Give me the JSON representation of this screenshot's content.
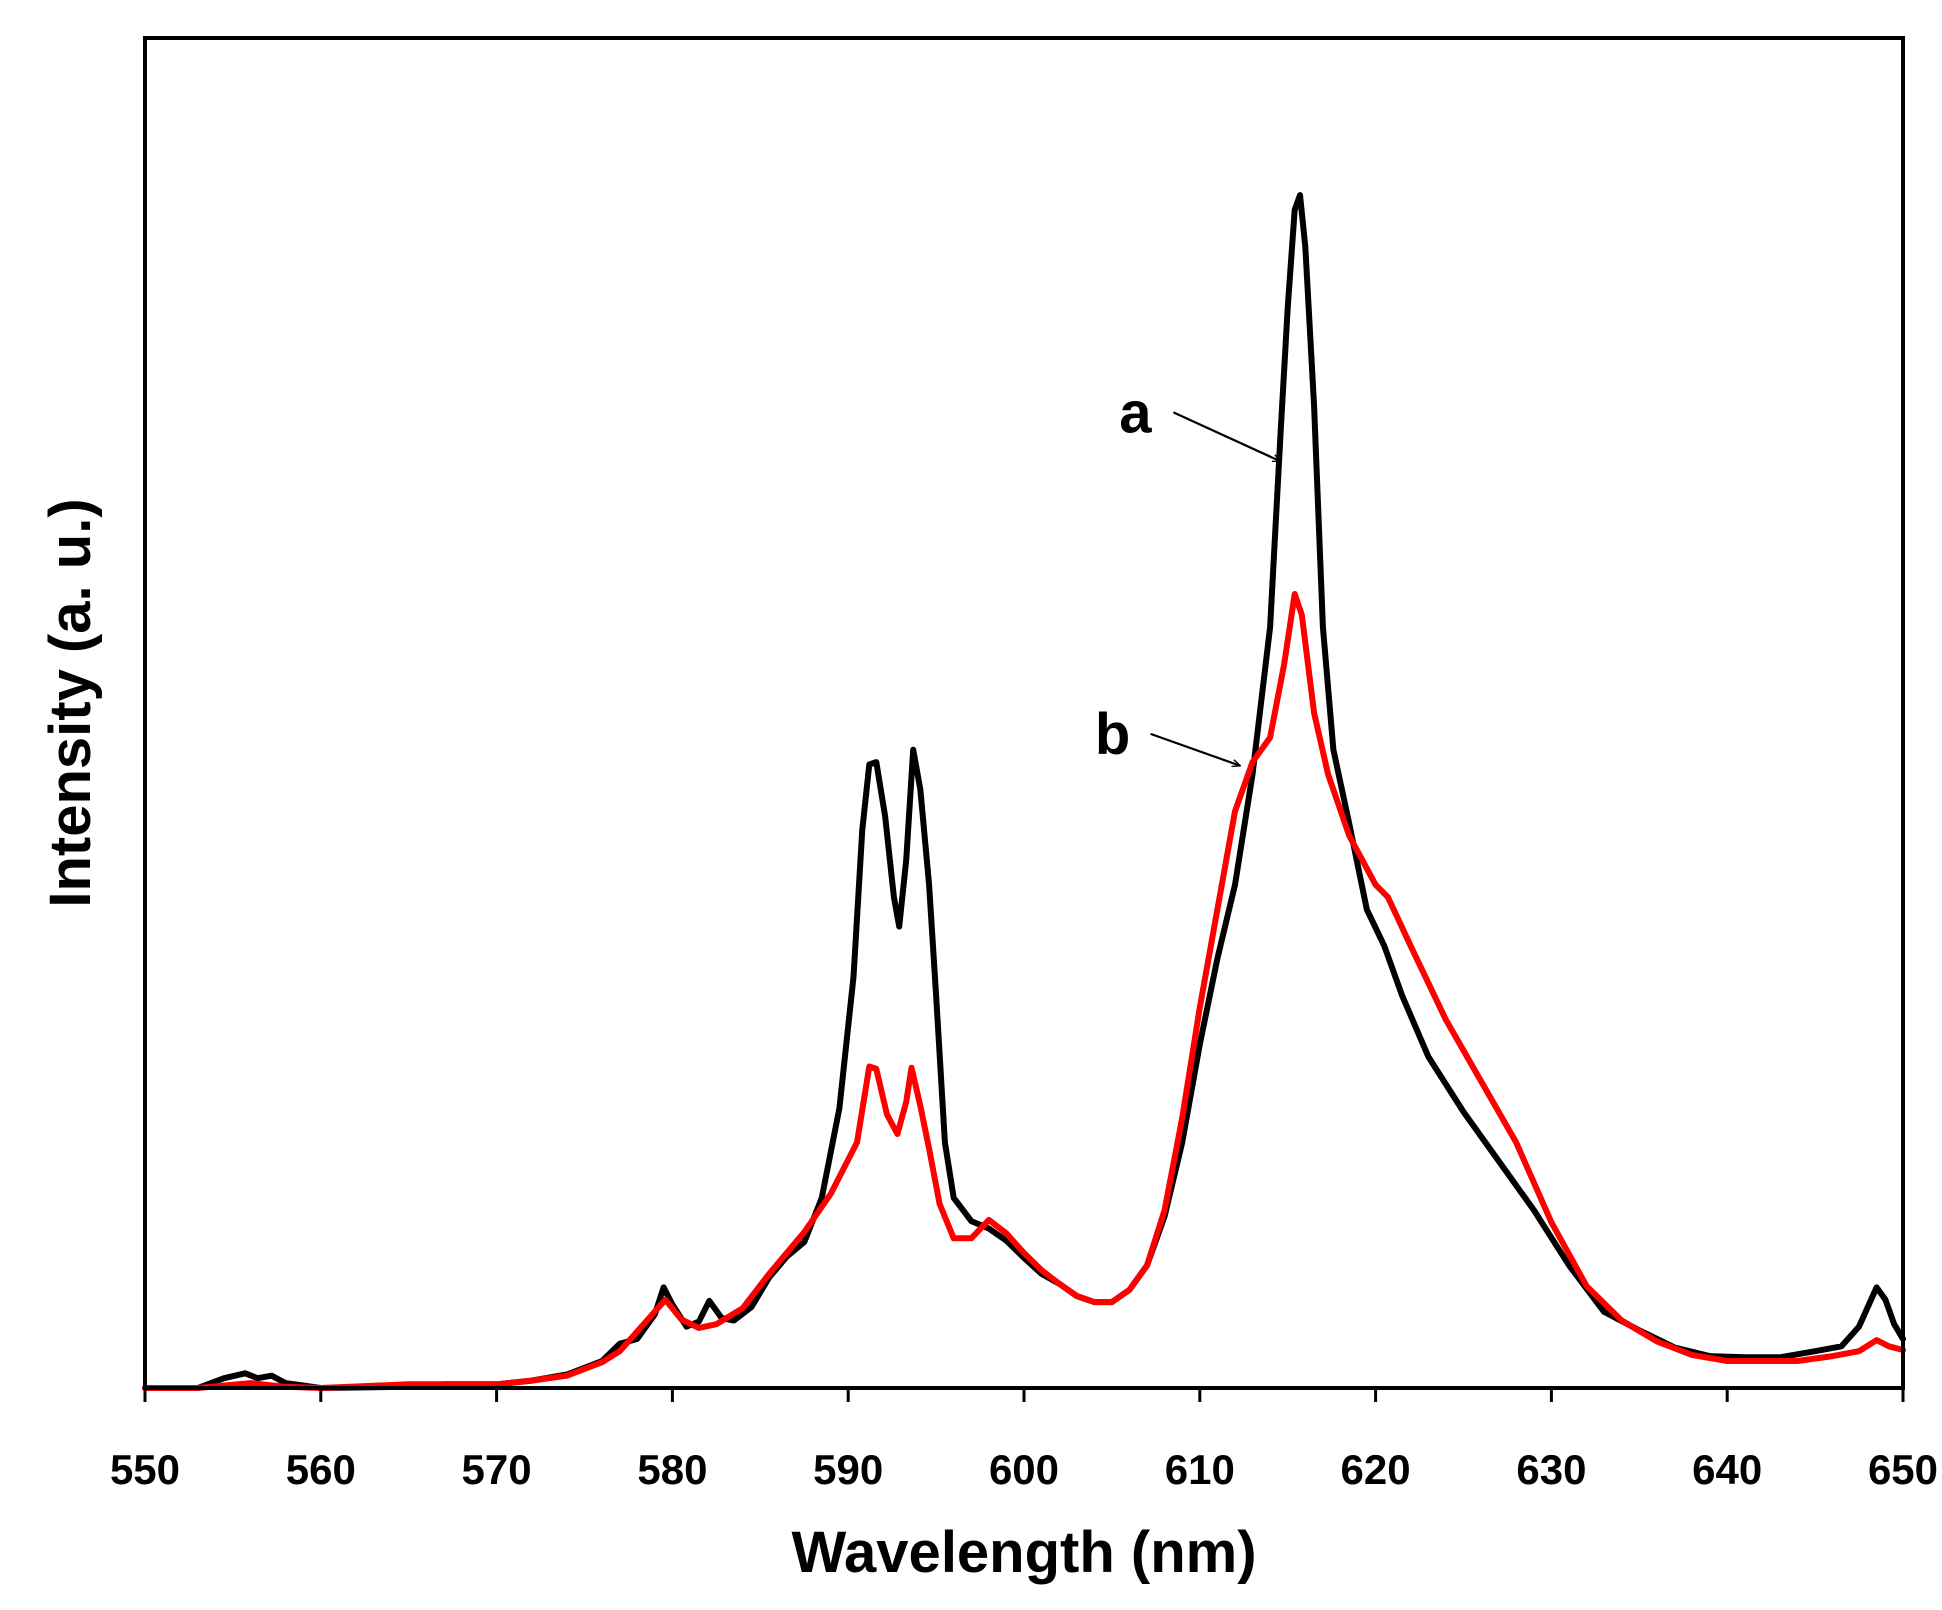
{
  "chart_data": {
    "type": "line",
    "title": "",
    "xlabel": "Wavelength (nm)",
    "ylabel": "Intensity (a. u.)",
    "xlim": [
      550,
      650
    ],
    "ylim": [
      0,
      1.1
    ],
    "xticks": [
      "550",
      "560",
      "570",
      "580",
      "590",
      "600",
      "610",
      "620",
      "630",
      "640",
      "650"
    ],
    "yticks_shown": false,
    "grid": false,
    "legend": "none",
    "series": [
      {
        "key": "a",
        "color": "#000000",
        "points": [
          [
            550,
            0.0
          ],
          [
            553,
            0.0
          ],
          [
            554.5,
            0.008
          ],
          [
            555.7,
            0.012
          ],
          [
            556.4,
            0.008
          ],
          [
            557.2,
            0.01
          ],
          [
            558,
            0.004
          ],
          [
            560,
            0.0
          ],
          [
            565,
            0.001
          ],
          [
            567,
            0.003
          ],
          [
            570,
            0.003
          ],
          [
            572,
            0.006
          ],
          [
            574,
            0.011
          ],
          [
            576,
            0.022
          ],
          [
            577,
            0.036
          ],
          [
            578,
            0.04
          ],
          [
            579,
            0.06
          ],
          [
            579.5,
            0.082
          ],
          [
            580,
            0.068
          ],
          [
            580.8,
            0.05
          ],
          [
            581.5,
            0.054
          ],
          [
            582.1,
            0.071
          ],
          [
            582.8,
            0.057
          ],
          [
            583.5,
            0.055
          ],
          [
            584.5,
            0.066
          ],
          [
            585.5,
            0.09
          ],
          [
            586.5,
            0.107
          ],
          [
            587.5,
            0.119
          ],
          [
            588.5,
            0.155
          ],
          [
            589.5,
            0.228
          ],
          [
            590.3,
            0.335
          ],
          [
            590.8,
            0.455
          ],
          [
            591.2,
            0.508
          ],
          [
            591.6,
            0.51
          ],
          [
            592.1,
            0.466
          ],
          [
            592.6,
            0.4
          ],
          [
            592.9,
            0.376
          ],
          [
            593.3,
            0.43
          ],
          [
            593.7,
            0.52
          ],
          [
            594.1,
            0.488
          ],
          [
            594.6,
            0.41
          ],
          [
            595,
            0.32
          ],
          [
            595.5,
            0.2
          ],
          [
            596,
            0.155
          ],
          [
            597,
            0.136
          ],
          [
            598,
            0.13
          ],
          [
            599,
            0.12
          ],
          [
            600,
            0.106
          ],
          [
            601,
            0.093
          ],
          [
            602,
            0.085
          ],
          [
            603,
            0.075
          ],
          [
            604,
            0.07
          ],
          [
            605,
            0.07
          ],
          [
            606,
            0.08
          ],
          [
            607,
            0.1
          ],
          [
            608,
            0.14
          ],
          [
            609,
            0.2
          ],
          [
            610,
            0.28
          ],
          [
            611,
            0.35
          ],
          [
            612,
            0.41
          ],
          [
            613,
            0.5
          ],
          [
            614,
            0.62
          ],
          [
            614.6,
            0.78
          ],
          [
            615,
            0.88
          ],
          [
            615.4,
            0.96
          ],
          [
            615.7,
            0.972
          ],
          [
            616,
            0.93
          ],
          [
            616.5,
            0.8
          ],
          [
            617,
            0.62
          ],
          [
            617.6,
            0.52
          ],
          [
            618.5,
            0.46
          ],
          [
            619.5,
            0.39
          ],
          [
            620.5,
            0.36
          ],
          [
            621.5,
            0.32
          ],
          [
            623,
            0.27
          ],
          [
            625,
            0.225
          ],
          [
            627,
            0.185
          ],
          [
            629,
            0.145
          ],
          [
            631,
            0.1
          ],
          [
            633,
            0.062
          ],
          [
            635,
            0.047
          ],
          [
            637,
            0.033
          ],
          [
            639,
            0.026
          ],
          [
            641,
            0.025
          ],
          [
            643,
            0.025
          ],
          [
            645,
            0.03
          ],
          [
            646.5,
            0.034
          ],
          [
            647.5,
            0.05
          ],
          [
            648.5,
            0.082
          ],
          [
            649,
            0.072
          ],
          [
            649.5,
            0.052
          ],
          [
            650,
            0.04
          ]
        ]
      },
      {
        "key": "b",
        "color": "#ff0000",
        "points": [
          [
            550,
            0.0
          ],
          [
            553,
            0.0
          ],
          [
            556,
            0.004
          ],
          [
            558,
            0.001
          ],
          [
            560,
            0.0
          ],
          [
            565,
            0.003
          ],
          [
            570,
            0.003
          ],
          [
            572,
            0.006
          ],
          [
            574,
            0.01
          ],
          [
            576,
            0.021
          ],
          [
            577,
            0.03
          ],
          [
            578,
            0.046
          ],
          [
            579.6,
            0.072
          ],
          [
            580.5,
            0.056
          ],
          [
            581.5,
            0.049
          ],
          [
            582.5,
            0.052
          ],
          [
            584,
            0.065
          ],
          [
            585.5,
            0.093
          ],
          [
            587.5,
            0.127
          ],
          [
            589,
            0.158
          ],
          [
            590.5,
            0.2
          ],
          [
            591.2,
            0.262
          ],
          [
            591.6,
            0.26
          ],
          [
            592.2,
            0.223
          ],
          [
            592.8,
            0.207
          ],
          [
            593.3,
            0.233
          ],
          [
            593.6,
            0.261
          ],
          [
            594.1,
            0.23
          ],
          [
            594.6,
            0.195
          ],
          [
            595.2,
            0.15
          ],
          [
            596,
            0.122
          ],
          [
            597,
            0.122
          ],
          [
            598,
            0.137
          ],
          [
            599,
            0.126
          ],
          [
            600,
            0.11
          ],
          [
            601,
            0.096
          ],
          [
            602,
            0.085
          ],
          [
            603,
            0.075
          ],
          [
            604,
            0.07
          ],
          [
            605,
            0.07
          ],
          [
            606,
            0.08
          ],
          [
            607,
            0.1
          ],
          [
            608,
            0.145
          ],
          [
            609,
            0.22
          ],
          [
            610,
            0.31
          ],
          [
            611,
            0.39
          ],
          [
            612,
            0.47
          ],
          [
            613,
            0.51
          ],
          [
            614,
            0.53
          ],
          [
            614.8,
            0.59
          ],
          [
            615.4,
            0.647
          ],
          [
            615.8,
            0.63
          ],
          [
            616.5,
            0.55
          ],
          [
            617.3,
            0.5
          ],
          [
            618.5,
            0.45
          ],
          [
            620,
            0.41
          ],
          [
            620.7,
            0.4
          ],
          [
            622,
            0.36
          ],
          [
            624,
            0.3
          ],
          [
            626,
            0.25
          ],
          [
            628,
            0.2
          ],
          [
            630,
            0.135
          ],
          [
            632,
            0.083
          ],
          [
            634,
            0.055
          ],
          [
            636,
            0.038
          ],
          [
            638,
            0.027
          ],
          [
            640,
            0.022
          ],
          [
            642,
            0.022
          ],
          [
            644,
            0.022
          ],
          [
            646,
            0.026
          ],
          [
            647.5,
            0.03
          ],
          [
            648.5,
            0.039
          ],
          [
            649.2,
            0.034
          ],
          [
            650,
            0.031
          ]
        ]
      }
    ],
    "annotations": [
      {
        "label": "a",
        "arrow_from": [
          608.5,
          0.795
        ],
        "arrow_to": [
          614.6,
          0.755
        ]
      },
      {
        "label": "b",
        "arrow_from": [
          607.2,
          0.533
        ],
        "arrow_to": [
          612.3,
          0.507
        ]
      }
    ]
  }
}
